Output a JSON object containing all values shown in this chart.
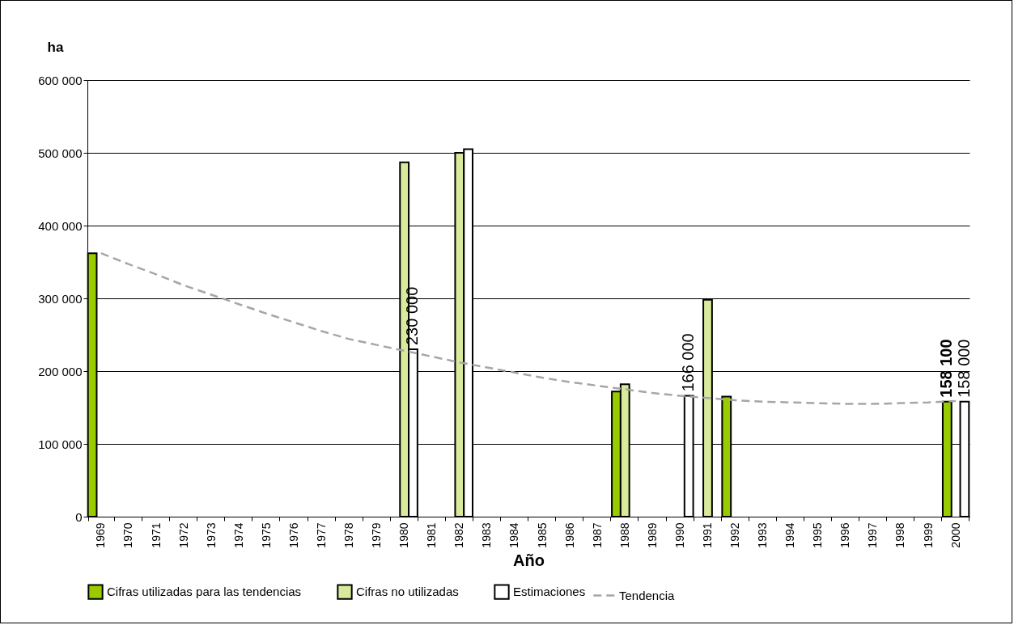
{
  "chart_data": {
    "type": "bar",
    "xlabel": "Año",
    "ylabel": "ha",
    "categories": [
      "1969",
      "1970",
      "1971",
      "1972",
      "1973",
      "1974",
      "1975",
      "1976",
      "1977",
      "1978",
      "1979",
      "1980",
      "1981",
      "1982",
      "1983",
      "1984",
      "1985",
      "1986",
      "1987",
      "1988",
      "1989",
      "1990",
      "1991",
      "1992",
      "1993",
      "1994",
      "1995",
      "1996",
      "1997",
      "1998",
      "1999",
      "2000"
    ],
    "series": [
      {
        "name": "Cifras utilizadas para las tendencias",
        "color": "#99cc00",
        "values": [
          362000,
          null,
          null,
          null,
          null,
          null,
          null,
          null,
          null,
          null,
          null,
          null,
          null,
          null,
          null,
          null,
          null,
          null,
          null,
          172000,
          null,
          null,
          null,
          165000,
          null,
          null,
          null,
          null,
          null,
          null,
          null,
          158100
        ],
        "value_labels": [
          null,
          null,
          null,
          null,
          null,
          null,
          null,
          null,
          null,
          null,
          null,
          null,
          null,
          null,
          null,
          null,
          null,
          null,
          null,
          null,
          null,
          null,
          null,
          null,
          null,
          null,
          null,
          null,
          null,
          null,
          null,
          "158 100"
        ]
      },
      {
        "name": "Cifras no utilizadas",
        "color": "#d9ea9c",
        "values": [
          null,
          null,
          null,
          null,
          null,
          null,
          null,
          null,
          null,
          null,
          null,
          487000,
          null,
          500000,
          null,
          null,
          null,
          null,
          null,
          182000,
          null,
          null,
          298000,
          null,
          null,
          null,
          null,
          null,
          null,
          null,
          null,
          null
        ]
      },
      {
        "name": "Estimaciones",
        "color": "#ffffff",
        "values": [
          null,
          null,
          null,
          null,
          null,
          null,
          null,
          null,
          null,
          null,
          null,
          230000,
          null,
          505000,
          null,
          null,
          null,
          null,
          null,
          null,
          null,
          166000,
          null,
          null,
          null,
          null,
          null,
          null,
          null,
          null,
          null,
          158000
        ],
        "value_labels": [
          null,
          null,
          null,
          null,
          null,
          null,
          null,
          null,
          null,
          null,
          null,
          "230 000",
          null,
          null,
          null,
          null,
          null,
          null,
          null,
          null,
          null,
          "166 000",
          null,
          null,
          null,
          null,
          null,
          null,
          null,
          null,
          null,
          "158 000"
        ]
      },
      {
        "name": "Tendencia",
        "type": "line",
        "color": "#a6a6a6",
        "line_style": "dashed",
        "values": [
          362000,
          347000,
          333000,
          318000,
          305000,
          292000,
          279000,
          267000,
          255000,
          244000,
          236000,
          228000,
          220000,
          212000,
          205000,
          198000,
          191000,
          185000,
          180000,
          175000,
          170000,
          166000,
          163000,
          160000,
          158000,
          157000,
          156000,
          155000,
          155000,
          156000,
          157000,
          159000
        ]
      }
    ],
    "ylim": [
      0,
      600000
    ],
    "yticks": [
      {
        "value": 0,
        "label": "0"
      },
      {
        "value": 100000,
        "label": "100 000"
      },
      {
        "value": 200000,
        "label": "200 000"
      },
      {
        "value": 300000,
        "label": "300 000"
      },
      {
        "value": 400000,
        "label": "400 000"
      },
      {
        "value": 500000,
        "label": "500 000"
      },
      {
        "value": 600000,
        "label": "600 000"
      }
    ],
    "grid": "y",
    "legend": "bottom"
  }
}
